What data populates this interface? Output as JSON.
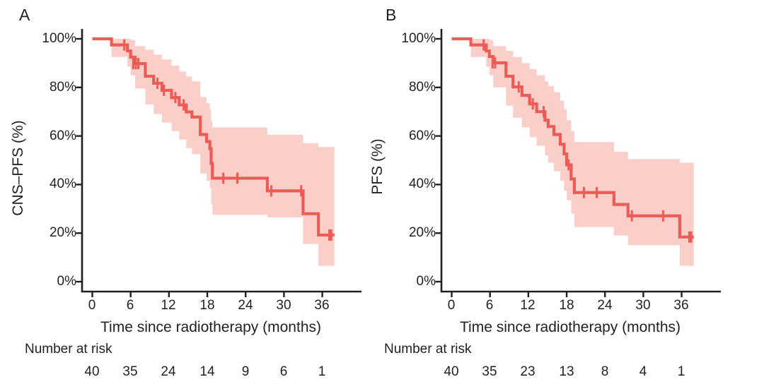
{
  "colors": {
    "curve": "#ec5c57",
    "band": "#facfca",
    "axis": "#231f20",
    "text": "#231f20"
  },
  "figure": {
    "panels": [
      {
        "label": "A",
        "y_axis_title": "CNS–PFS (%)",
        "x_axis_title": "Time since radiotherapy (months)",
        "y_tick_labels": [
          "100%",
          "80%",
          "60%",
          "40%",
          "20%",
          "0%"
        ],
        "x_tick_labels": [
          "0",
          "6",
          "12",
          "18",
          "24",
          "30",
          "36"
        ],
        "number_at_risk_label": "Number at risk",
        "number_at_risk": [
          "40",
          "35",
          "24",
          "14",
          "9",
          "6",
          "1"
        ]
      },
      {
        "label": "B",
        "y_axis_title": "PFS (%)",
        "x_axis_title": "Time since radiotherapy (months)",
        "y_tick_labels": [
          "100%",
          "80%",
          "60%",
          "40%",
          "20%",
          "0%"
        ],
        "x_tick_labels": [
          "0",
          "6",
          "12",
          "18",
          "24",
          "30",
          "36"
        ],
        "number_at_risk_label": "Number at risk",
        "number_at_risk": [
          "40",
          "35",
          "23",
          "13",
          "8",
          "4",
          "1"
        ]
      }
    ]
  },
  "chart_data": [
    {
      "type": "line",
      "subtype": "kaplan-meier-step",
      "panel": "A",
      "ylabel": "CNS–PFS (%)",
      "xlabel": "Time since radiotherapy (months)",
      "xlim": [
        0,
        38
      ],
      "ylim": [
        0,
        100
      ],
      "x_ticks": [
        0,
        6,
        12,
        18,
        24,
        30,
        36
      ],
      "y_ticks": [
        0,
        20,
        40,
        60,
        80,
        100
      ],
      "grid": false,
      "legend": false,
      "steps_percent": [
        [
          0,
          100
        ],
        [
          3,
          97.5
        ],
        [
          5.5,
          95
        ],
        [
          6,
          92.4
        ],
        [
          6.7,
          89.8
        ],
        [
          8.3,
          84.6
        ],
        [
          9.6,
          81.7
        ],
        [
          10.9,
          78.8
        ],
        [
          12.4,
          75.8
        ],
        [
          13.6,
          72.8
        ],
        [
          14.7,
          69.9
        ],
        [
          15.6,
          67.8
        ],
        [
          16.9,
          60.6
        ],
        [
          17.9,
          57.7
        ],
        [
          18.4,
          54.8
        ],
        [
          18.6,
          48.7
        ],
        [
          18.8,
          42.6
        ],
        [
          27.4,
          37.4
        ],
        [
          33,
          28
        ],
        [
          35.4,
          19.2
        ]
      ],
      "ci_band": [
        [
          3,
          92.5,
          100
        ],
        [
          5.5,
          88.5,
          100
        ],
        [
          6,
          85,
          99.5
        ],
        [
          6.7,
          79.5,
          97
        ],
        [
          8.3,
          73,
          95.5
        ],
        [
          9.6,
          69,
          93.5
        ],
        [
          10.9,
          65.5,
          91.5
        ],
        [
          12.4,
          62,
          89
        ],
        [
          13.6,
          58.5,
          86.5
        ],
        [
          14.7,
          55,
          84.5
        ],
        [
          15.6,
          52.5,
          82.5
        ],
        [
          16.9,
          44.5,
          76
        ],
        [
          17.9,
          41.5,
          73.5
        ],
        [
          18.4,
          38.5,
          71
        ],
        [
          18.6,
          32,
          66
        ],
        [
          18.8,
          27.5,
          63.5
        ],
        [
          27.4,
          26.5,
          60.5
        ],
        [
          33,
          15.5,
          57
        ],
        [
          35.4,
          6.5,
          55.5
        ]
      ],
      "censor_marks": [
        [
          5,
          97.5
        ],
        [
          6.4,
          89.8
        ],
        [
          6.8,
          89.8
        ],
        [
          7.2,
          89.8
        ],
        [
          10.2,
          81.7
        ],
        [
          11.2,
          78.8
        ],
        [
          13,
          75.8
        ],
        [
          14.3,
          72.8
        ],
        [
          20.5,
          42.6
        ],
        [
          22.7,
          42.6
        ],
        [
          28,
          37.4
        ],
        [
          32.7,
          37.4
        ],
        [
          37.1,
          19.2
        ],
        [
          37.4,
          19.2
        ]
      ],
      "end_time": 37.9,
      "number_at_risk": {
        "times": [
          0,
          6,
          12,
          18,
          24,
          30,
          36
        ],
        "counts": [
          40,
          35,
          24,
          14,
          9,
          6,
          1
        ]
      }
    },
    {
      "type": "line",
      "subtype": "kaplan-meier-step",
      "panel": "B",
      "ylabel": "PFS (%)",
      "xlabel": "Time since radiotherapy (months)",
      "xlim": [
        0,
        38
      ],
      "ylim": [
        0,
        100
      ],
      "x_ticks": [
        0,
        6,
        12,
        18,
        24,
        30,
        36
      ],
      "y_ticks": [
        0,
        20,
        40,
        60,
        80,
        100
      ],
      "grid": false,
      "legend": false,
      "steps_percent": [
        [
          0,
          100
        ],
        [
          3,
          97.5
        ],
        [
          5.4,
          95
        ],
        [
          5.9,
          92.7
        ],
        [
          6.5,
          90.1
        ],
        [
          8.5,
          84.6
        ],
        [
          9.6,
          80.2
        ],
        [
          11,
          76.7
        ],
        [
          12.2,
          73.2
        ],
        [
          13.3,
          70
        ],
        [
          14.6,
          66.5
        ],
        [
          15.1,
          63.9
        ],
        [
          16,
          60.6
        ],
        [
          17,
          56.6
        ],
        [
          17.6,
          52.6
        ],
        [
          18,
          48.1
        ],
        [
          18.7,
          42.3
        ],
        [
          19.2,
          36.7
        ],
        [
          25.4,
          31.8
        ],
        [
          27.6,
          27.1
        ],
        [
          35.7,
          18.4
        ]
      ],
      "ci_band": [
        [
          3,
          92.5,
          100
        ],
        [
          5.4,
          88.5,
          100
        ],
        [
          5.9,
          85,
          99.5
        ],
        [
          6.5,
          80,
          97
        ],
        [
          8.5,
          72.5,
          95
        ],
        [
          9.6,
          67.5,
          92.5
        ],
        [
          11,
          63.5,
          90
        ],
        [
          12.2,
          59.5,
          87.5
        ],
        [
          13.3,
          56,
          85
        ],
        [
          14.6,
          52,
          82.5
        ],
        [
          15.1,
          49,
          80.5
        ],
        [
          16,
          45.5,
          78
        ],
        [
          17,
          41.5,
          74.5
        ],
        [
          17.6,
          37.5,
          71
        ],
        [
          18,
          33.5,
          66.5
        ],
        [
          18.7,
          28,
          62
        ],
        [
          19.2,
          22.5,
          57.5
        ],
        [
          25.4,
          19,
          53.5
        ],
        [
          27.6,
          15,
          50.5
        ],
        [
          35.7,
          6.5,
          49
        ]
      ],
      "censor_marks": [
        [
          5,
          97.5
        ],
        [
          6.4,
          90.1
        ],
        [
          6.8,
          90.1
        ],
        [
          10.5,
          80.2
        ],
        [
          12.7,
          73.2
        ],
        [
          14.4,
          70
        ],
        [
          18.3,
          48.1
        ],
        [
          20.7,
          36.7
        ],
        [
          22.7,
          36.7
        ],
        [
          28.2,
          27.1
        ],
        [
          33.1,
          27.1
        ],
        [
          37.2,
          18.4
        ],
        [
          37.5,
          18.4
        ]
      ],
      "end_time": 37.9,
      "number_at_risk": {
        "times": [
          0,
          6,
          12,
          18,
          24,
          30,
          36
        ],
        "counts": [
          40,
          35,
          23,
          13,
          8,
          4,
          1
        ]
      }
    }
  ]
}
